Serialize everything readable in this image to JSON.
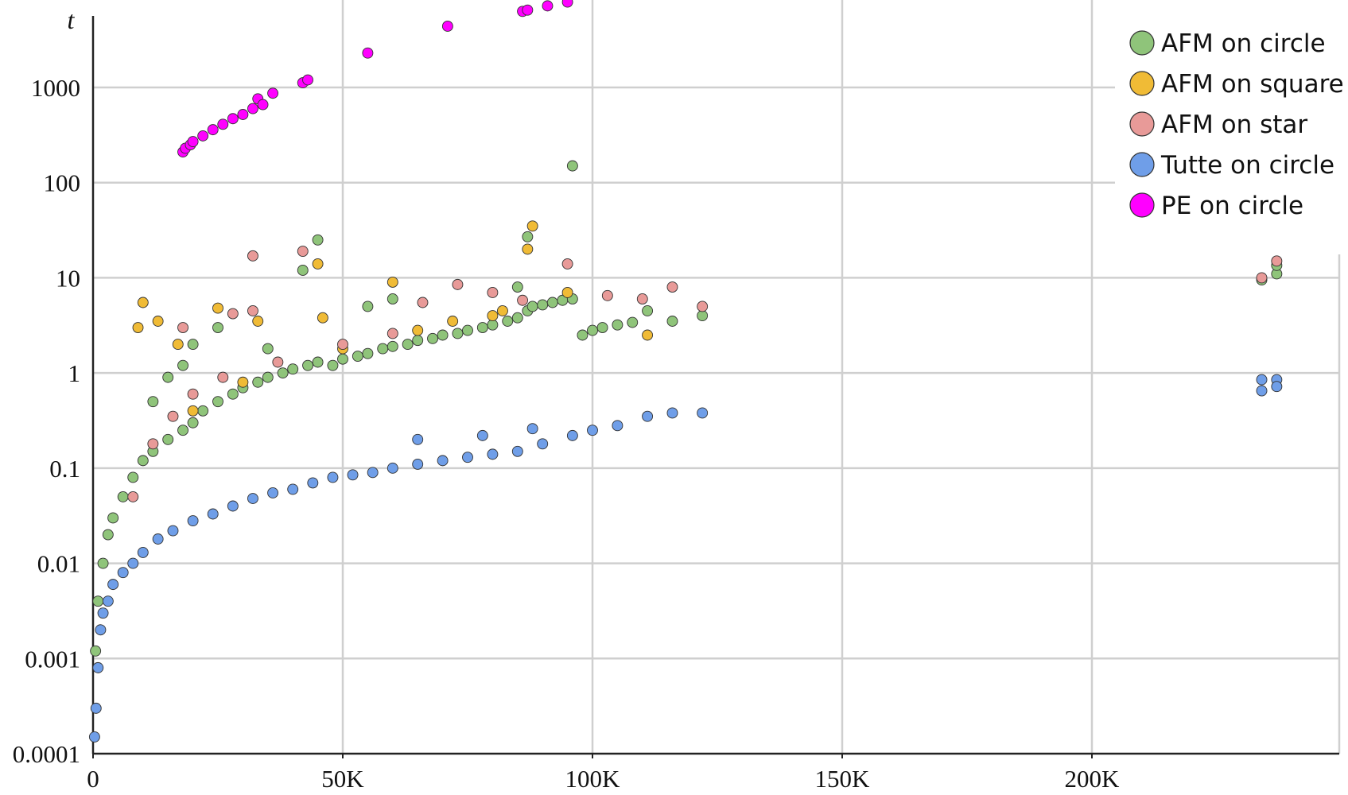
{
  "chart_data": {
    "type": "scatter",
    "title": "",
    "xlabel": "",
    "ylabel": "t",
    "xscale": "linear",
    "yscale": "log",
    "xlim": [
      0,
      250000
    ],
    "ylim": [
      0.0001,
      10000
    ],
    "grid": true,
    "legend_position": "top-right",
    "x_ticks": [
      {
        "value": 0,
        "label": "0"
      },
      {
        "value": 50000,
        "label": "50K"
      },
      {
        "value": 100000,
        "label": "100K"
      },
      {
        "value": 150000,
        "label": "150K"
      },
      {
        "value": 200000,
        "label": "200K"
      }
    ],
    "y_ticks": [
      {
        "value": 0.0001,
        "label": "0.0001"
      },
      {
        "value": 0.001,
        "label": "0.001"
      },
      {
        "value": 0.01,
        "label": "0.01"
      },
      {
        "value": 0.1,
        "label": "0.1"
      },
      {
        "value": 1,
        "label": "1"
      },
      {
        "value": 10,
        "label": "10"
      },
      {
        "value": 100,
        "label": "100"
      },
      {
        "value": 1000,
        "label": "1000"
      }
    ],
    "series": [
      {
        "name": "AFM on circle",
        "color": "#8fc47a",
        "points": [
          [
            500,
            0.0012
          ],
          [
            1000,
            0.004
          ],
          [
            2000,
            0.01
          ],
          [
            3000,
            0.02
          ],
          [
            4000,
            0.03
          ],
          [
            6000,
            0.05
          ],
          [
            8000,
            0.08
          ],
          [
            10000,
            0.12
          ],
          [
            12000,
            0.15
          ],
          [
            15000,
            0.2
          ],
          [
            18000,
            0.25
          ],
          [
            20000,
            0.3
          ],
          [
            22000,
            0.4
          ],
          [
            25000,
            0.5
          ],
          [
            28000,
            0.6
          ],
          [
            30000,
            0.7
          ],
          [
            33000,
            0.8
          ],
          [
            35000,
            0.9
          ],
          [
            38000,
            1.0
          ],
          [
            40000,
            1.1
          ],
          [
            43000,
            1.2
          ],
          [
            45000,
            1.3
          ],
          [
            48000,
            1.2
          ],
          [
            50000,
            1.4
          ],
          [
            53000,
            1.5
          ],
          [
            55000,
            1.6
          ],
          [
            58000,
            1.8
          ],
          [
            60000,
            1.9
          ],
          [
            63000,
            2.0
          ],
          [
            65000,
            2.2
          ],
          [
            68000,
            2.3
          ],
          [
            70000,
            2.5
          ],
          [
            73000,
            2.6
          ],
          [
            75000,
            2.8
          ],
          [
            78000,
            3.0
          ],
          [
            80000,
            3.2
          ],
          [
            83000,
            3.5
          ],
          [
            85000,
            3.8
          ],
          [
            87000,
            4.5
          ],
          [
            88000,
            5.0
          ],
          [
            90000,
            5.2
          ],
          [
            92000,
            5.5
          ],
          [
            94000,
            5.8
          ],
          [
            96000,
            6.0
          ],
          [
            98000,
            2.5
          ],
          [
            100000,
            2.8
          ],
          [
            102000,
            3.0
          ],
          [
            105000,
            3.2
          ],
          [
            108000,
            3.4
          ],
          [
            111000,
            4.5
          ],
          [
            116000,
            3.5
          ],
          [
            122000,
            4.0
          ],
          [
            20000,
            2.0
          ],
          [
            25000,
            3.0
          ],
          [
            35000,
            1.8
          ],
          [
            45000,
            25
          ],
          [
            42000,
            12
          ],
          [
            55000,
            5.0
          ],
          [
            60000,
            6.0
          ],
          [
            87000,
            27
          ],
          [
            85000,
            8
          ],
          [
            234000,
            9.5
          ],
          [
            237000,
            11
          ],
          [
            237000,
            13.5
          ],
          [
            96000,
            150
          ],
          [
            15000,
            0.9
          ],
          [
            12000,
            0.5
          ],
          [
            18000,
            1.2
          ]
        ]
      },
      {
        "name": "AFM on square",
        "color": "#f0bb36",
        "points": [
          [
            9000,
            3.0
          ],
          [
            10000,
            5.5
          ],
          [
            13000,
            3.5
          ],
          [
            17000,
            2.0
          ],
          [
            25000,
            4.8
          ],
          [
            33000,
            3.5
          ],
          [
            45000,
            14
          ],
          [
            46000,
            3.8
          ],
          [
            60000,
            9.0
          ],
          [
            72000,
            3.5
          ],
          [
            82000,
            4.5
          ],
          [
            87000,
            20
          ],
          [
            88000,
            35
          ],
          [
            111000,
            2.5
          ],
          [
            20000,
            0.4
          ],
          [
            30000,
            0.8
          ],
          [
            50000,
            1.8
          ],
          [
            65000,
            2.8
          ],
          [
            80000,
            4.0
          ],
          [
            95000,
            7.0
          ]
        ]
      },
      {
        "name": "AFM on star",
        "color": "#e89a98",
        "points": [
          [
            8000,
            0.05
          ],
          [
            12000,
            0.18
          ],
          [
            16000,
            0.35
          ],
          [
            20000,
            0.6
          ],
          [
            26000,
            0.9
          ],
          [
            32000,
            17
          ],
          [
            32000,
            4.5
          ],
          [
            37000,
            1.3
          ],
          [
            42000,
            19
          ],
          [
            50000,
            2.0
          ],
          [
            60000,
            2.6
          ],
          [
            66000,
            5.5
          ],
          [
            73000,
            8.5
          ],
          [
            80000,
            7.0
          ],
          [
            86000,
            5.8
          ],
          [
            95000,
            14
          ],
          [
            103000,
            6.5
          ],
          [
            110000,
            6.0
          ],
          [
            116000,
            8.0
          ],
          [
            122000,
            5.0
          ],
          [
            234000,
            10
          ],
          [
            237000,
            15
          ],
          [
            18000,
            3.0
          ],
          [
            28000,
            4.2
          ]
        ]
      },
      {
        "name": "Tutte on circle",
        "color": "#6f9ee8",
        "points": [
          [
            300,
            0.00015
          ],
          [
            600,
            0.0003
          ],
          [
            1000,
            0.0008
          ],
          [
            1500,
            0.002
          ],
          [
            2000,
            0.003
          ],
          [
            3000,
            0.004
          ],
          [
            4000,
            0.006
          ],
          [
            6000,
            0.008
          ],
          [
            8000,
            0.01
          ],
          [
            10000,
            0.013
          ],
          [
            13000,
            0.018
          ],
          [
            16000,
            0.022
          ],
          [
            20000,
            0.028
          ],
          [
            24000,
            0.033
          ],
          [
            28000,
            0.04
          ],
          [
            32000,
            0.048
          ],
          [
            36000,
            0.055
          ],
          [
            40000,
            0.06
          ],
          [
            44000,
            0.07
          ],
          [
            48000,
            0.08
          ],
          [
            52000,
            0.085
          ],
          [
            56000,
            0.09
          ],
          [
            60000,
            0.1
          ],
          [
            65000,
            0.11
          ],
          [
            70000,
            0.12
          ],
          [
            75000,
            0.13
          ],
          [
            80000,
            0.14
          ],
          [
            85000,
            0.15
          ],
          [
            90000,
            0.18
          ],
          [
            96000,
            0.22
          ],
          [
            100000,
            0.25
          ],
          [
            105000,
            0.28
          ],
          [
            111000,
            0.35
          ],
          [
            116000,
            0.38
          ],
          [
            122000,
            0.38
          ],
          [
            234000,
            0.85
          ],
          [
            234000,
            0.65
          ],
          [
            237000,
            0.85
          ],
          [
            237000,
            0.72
          ],
          [
            65000,
            0.2
          ],
          [
            78000,
            0.22
          ],
          [
            88000,
            0.26
          ]
        ]
      },
      {
        "name": "PE on circle",
        "color": "#ff00ff",
        "points": [
          [
            18000,
            210
          ],
          [
            18500,
            230
          ],
          [
            19500,
            250
          ],
          [
            20000,
            270
          ],
          [
            22000,
            310
          ],
          [
            24000,
            360
          ],
          [
            26000,
            410
          ],
          [
            28000,
            470
          ],
          [
            30000,
            520
          ],
          [
            32000,
            600
          ],
          [
            33000,
            760
          ],
          [
            34000,
            660
          ],
          [
            36000,
            870
          ],
          [
            42000,
            1120
          ],
          [
            43000,
            1200
          ],
          [
            55000,
            2300
          ],
          [
            71000,
            4400
          ],
          [
            86000,
            6300
          ],
          [
            87000,
            6500
          ],
          [
            91000,
            7200
          ],
          [
            95000,
            7900
          ]
        ]
      }
    ]
  }
}
